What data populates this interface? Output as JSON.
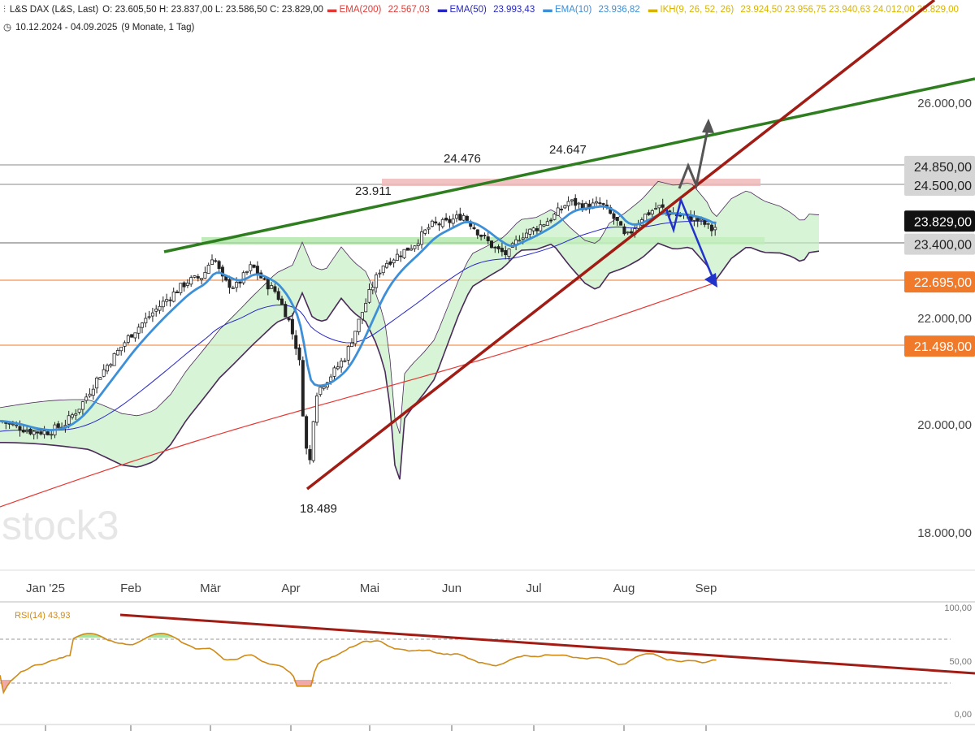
{
  "header": {
    "title": "L&S DAX (L&S, Last)",
    "ohlc": "O: 23.605,50  H: 23.837,00  L: 23.586,50  C: 23.829,00",
    "indicators": [
      {
        "label": "EMA(200)",
        "value": "22.567,03",
        "color": "#e53935"
      },
      {
        "label": "EMA(50)",
        "value": "23.993,43",
        "color": "#2727c9"
      },
      {
        "label": "EMA(10)",
        "value": "23.936,82",
        "color": "#3d8fd8"
      },
      {
        "label": "IKH(9, 26, 52, 26)",
        "value": "23.924,50  23.956,75  23.940,63  24.012,00  23.829,00",
        "color": "#d8b400"
      }
    ],
    "period": "10.12.2024 - 04.09.2025",
    "period_note": "(9 Monate, 1 Tag)"
  },
  "chart_data": {
    "type": "candlestick",
    "y_axis_ticks": [
      "26.000,00",
      "22.000,00",
      "20.000,00",
      "18.000,00"
    ],
    "price_tags": [
      {
        "label": "24.850,00",
        "value": 24850,
        "style": "gray"
      },
      {
        "label": "24.500,00",
        "value": 24500,
        "style": "gray"
      },
      {
        "label": "23.829,00",
        "value": 23829,
        "style": "black"
      },
      {
        "label": "23.400,00",
        "value": 23400,
        "style": "gray"
      },
      {
        "label": "22.695,00",
        "value": 22695,
        "style": "orange"
      },
      {
        "label": "21.498,00",
        "value": 21498,
        "style": "orange"
      }
    ],
    "x_labels": [
      "Jan '25",
      "Feb",
      "Mär",
      "Apr",
      "Mai",
      "Jun",
      "Jul",
      "Aug",
      "Sep"
    ],
    "annotations": [
      "24.476",
      "24.647",
      "23.911",
      "18.489"
    ],
    "rsi": {
      "label": "RSI(14)",
      "value": "43,93",
      "ticks": [
        "100,00",
        "50,00",
        "0,00"
      ]
    },
    "watermark": "stock3",
    "colors": {
      "up": "#1f1f1f",
      "ema200": "#e53935",
      "ema50": "#2727c9",
      "ema10": "#3d8fd8",
      "trend_green": "#2e7d1f",
      "trend_red": "#a11c14",
      "cloud_green": "#c8efc4",
      "cloud_red": "#f3c4c4",
      "orange_tag": "#f07a2a",
      "rsi_line": "#d08a16"
    }
  }
}
